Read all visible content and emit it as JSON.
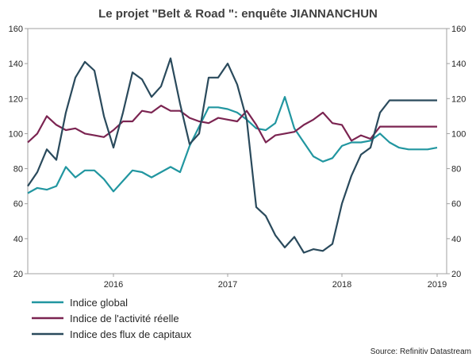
{
  "chart_data": {
    "type": "line",
    "title": "Le projet \"Belt & Road \": enquête JIANNANCHUN",
    "source": "Source: Refinitiv Datastream",
    "xlabel": "",
    "ylabel": "",
    "ylim": [
      20,
      160
    ],
    "yticks": [
      "20",
      "40",
      "60",
      "80",
      "100",
      "120",
      "140",
      "160"
    ],
    "y2ticks": [
      "20",
      "40",
      "60",
      "80",
      "100",
      "120",
      "140",
      "160"
    ],
    "xlim": [
      "2015-10",
      "2019-06"
    ],
    "xticks": [
      {
        "label": "2016",
        "date": "2016-07"
      },
      {
        "label": "2017",
        "date": "2017-07"
      },
      {
        "label": "2018",
        "date": "2018-07"
      },
      {
        "label": "2019",
        "date": "2019-05"
      }
    ],
    "grid": false,
    "legend_position": "bottom-left",
    "x": [
      "2015-10",
      "2015-11",
      "2015-12",
      "2016-01",
      "2016-02",
      "2016-03",
      "2016-04",
      "2016-05",
      "2016-06",
      "2016-07",
      "2016-08",
      "2016-09",
      "2016-10",
      "2016-11",
      "2016-12",
      "2017-01",
      "2017-02",
      "2017-03",
      "2017-04",
      "2017-05",
      "2017-06",
      "2017-07",
      "2017-08",
      "2017-09",
      "2017-10",
      "2017-11",
      "2017-12",
      "2018-01",
      "2018-02",
      "2018-03",
      "2018-04",
      "2018-05",
      "2018-06",
      "2018-07",
      "2018-08",
      "2018-09",
      "2018-10",
      "2018-11",
      "2018-12",
      "2019-01",
      "2019-02",
      "2019-03",
      "2019-04",
      "2019-05"
    ],
    "series": [
      {
        "name": "Indice global",
        "color": "#2196a0",
        "values": [
          66,
          69,
          68,
          70,
          81,
          75,
          79,
          79,
          74,
          67,
          73,
          79,
          78,
          75,
          78,
          81,
          78,
          93,
          104,
          115,
          115,
          114,
          112,
          108,
          103,
          102,
          106,
          121,
          103,
          95,
          87,
          84,
          86,
          93,
          95,
          95,
          96,
          100,
          95,
          92,
          91,
          91,
          91,
          92
        ]
      },
      {
        "name": "Indice de l'activité réelle",
        "color": "#7b2451",
        "values": [
          95,
          100,
          110,
          105,
          102,
          103,
          100,
          99,
          98,
          102,
          107,
          107,
          113,
          112,
          116,
          113,
          113,
          109,
          107,
          106,
          109,
          108,
          107,
          113,
          105,
          95,
          99,
          100,
          101,
          105,
          108,
          112,
          106,
          105,
          96,
          99,
          97,
          104,
          104,
          104,
          104,
          104,
          104,
          104
        ]
      },
      {
        "name": "Indice des flux de capitaux",
        "color": "#2a4a5c",
        "values": [
          70,
          78,
          91,
          85,
          112,
          132,
          141,
          136,
          110,
          92,
          112,
          135,
          131,
          121,
          127,
          143,
          117,
          94,
          100,
          132,
          132,
          140,
          128,
          108,
          58,
          53,
          42,
          35,
          41,
          32,
          34,
          33,
          37,
          60,
          76,
          88,
          92,
          112,
          119,
          119,
          119,
          119,
          119,
          119
        ]
      }
    ]
  }
}
